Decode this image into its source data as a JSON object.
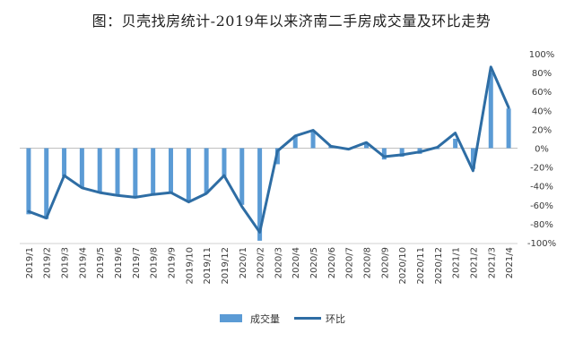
{
  "title": "图：贝壳找房统计-2019年以来济南二手房成交量及环比走势",
  "chart_data": {
    "type": "bar",
    "categories": [
      "2019/1",
      "2019/2",
      "2019/3",
      "2019/4",
      "2019/5",
      "2019/6",
      "2019/7",
      "2019/8",
      "2019/9",
      "2019/10",
      "2019/11",
      "2019/12",
      "2020/1",
      "2020/2",
      "2020/3",
      "2020/4",
      "2020/5",
      "2020/6",
      "2020/7",
      "2020/8",
      "2020/9",
      "2020/10",
      "2020/11",
      "2020/12",
      "2021/1",
      "2021/2",
      "2021/3",
      "2021/4"
    ],
    "series": [
      {
        "name": "成交量",
        "kind": "bar",
        "color": "#5b9bd5",
        "values": [
          -70,
          -75,
          -30,
          -42,
          -47,
          -50,
          -52,
          -50,
          -48,
          -57,
          -48,
          -30,
          -60,
          -98,
          -17,
          13,
          18,
          2,
          -2,
          5,
          -12,
          -9,
          -6,
          -1,
          10,
          -22,
          80,
          42
        ]
      },
      {
        "name": "环比",
        "kind": "line",
        "color": "#2e6da4",
        "values": [
          -67,
          -74,
          -29,
          -42,
          -47,
          -50,
          -52,
          -49,
          -47,
          -57,
          -48,
          -29,
          -62,
          -89,
          -3,
          13,
          19,
          2,
          -1,
          6,
          -9,
          -7,
          -4,
          1,
          16,
          -24,
          86,
          43
        ]
      }
    ],
    "ylim": [
      -100,
      100
    ],
    "yticks": [
      "100%",
      "80%",
      "60%",
      "40%",
      "20%",
      "0%",
      "-20%",
      "-40%",
      "-60%",
      "-80%",
      "-100%"
    ],
    "ytick_values": [
      100,
      80,
      60,
      40,
      20,
      0,
      -20,
      -40,
      -60,
      -80,
      -100
    ],
    "y_axis_side": "right",
    "legend_position": "bottom",
    "grid": false
  }
}
